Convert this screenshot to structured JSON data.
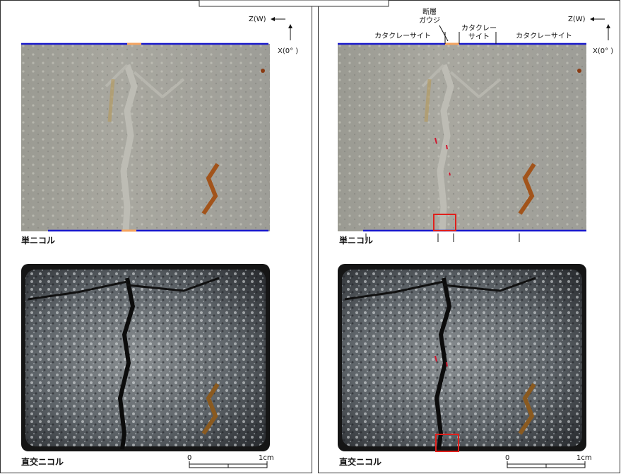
{
  "panels": [
    {
      "z_label": "Z(W)",
      "x_label": "X(0° )",
      "plane_label": "単ニコル",
      "cross_label": "直交ニコル",
      "scale": {
        "start": "0",
        "end": "1cm"
      }
    },
    {
      "z_label": "Z(W)",
      "x_label": "X(0° )",
      "plane_label": "単ニコル",
      "cross_label": "直交ニコル",
      "scale": {
        "start": "0",
        "end": "1cm"
      },
      "zones": {
        "left": "カタクレーサイト",
        "gouge": [
          "断層",
          "ガウジ"
        ],
        "middle": [
          "カタクレー",
          "サイト"
        ],
        "right": "カタクレーサイト"
      }
    }
  ]
}
